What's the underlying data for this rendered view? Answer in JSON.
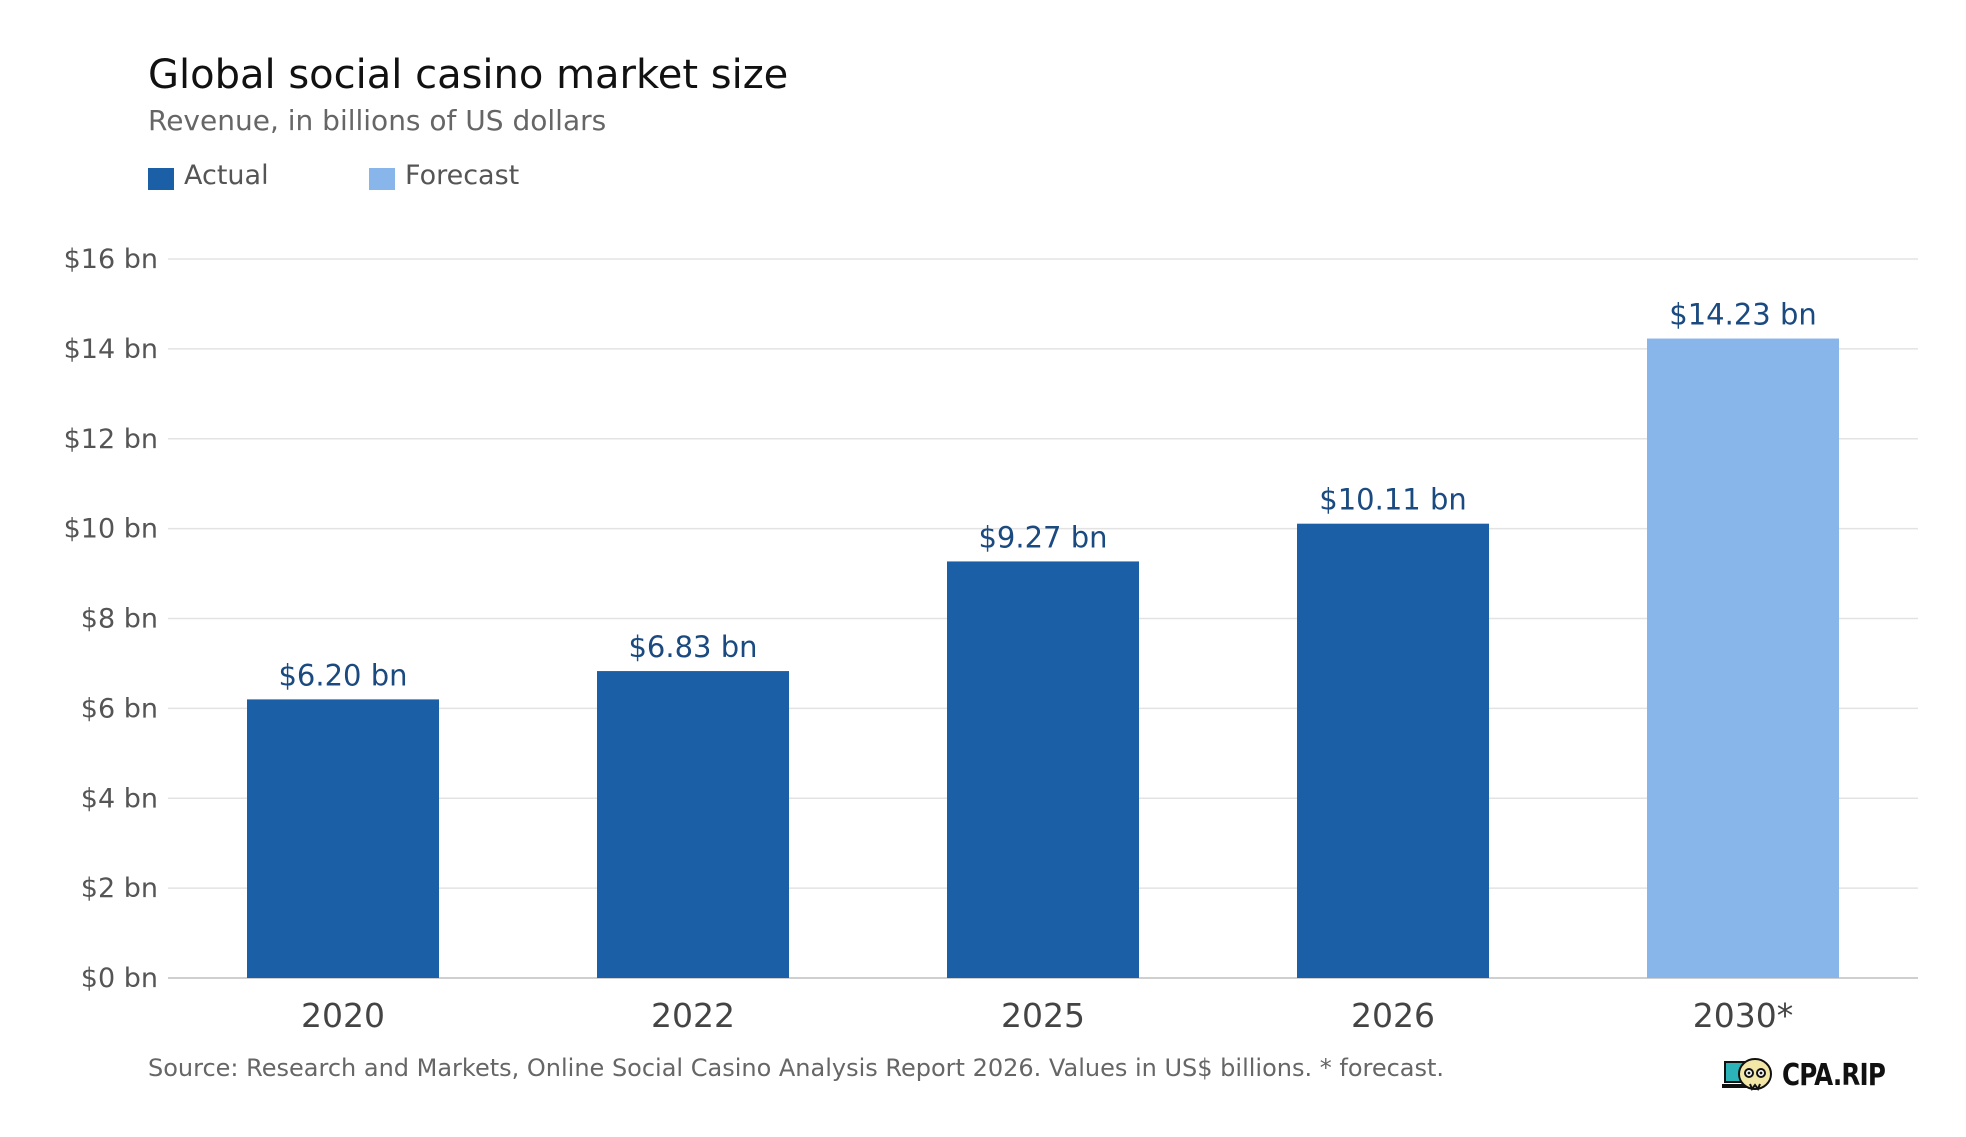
{
  "header": {
    "title": "Global social casino market size",
    "subtitle": "Revenue, in billions of US dollars"
  },
  "legend": {
    "actual_label": "Actual",
    "forecast_label": "Forecast"
  },
  "colors": {
    "actual": "#1b5fa6",
    "forecast": "#88b6ea",
    "label_text": "#1a4a80",
    "grid": "#e3e3e3",
    "axis": "#cfcfcf"
  },
  "footer": {
    "source": "Source: Research and Markets, Online Social Casino Analysis Report 2026. Values in US$ billions. * forecast.",
    "brand": "CPA.RIP"
  },
  "chart_data": {
    "type": "bar",
    "title": "Global social casino market size",
    "subtitle": "Revenue, in billions of US dollars",
    "categories": [
      "2020",
      "2022",
      "2025",
      "2026",
      "2030*"
    ],
    "values": [
      6.2,
      6.83,
      9.27,
      10.11,
      14.23
    ],
    "value_labels": [
      "$6.20 bn",
      "$6.83 bn",
      "$9.27 bn",
      "$10.11 bn",
      "$14.23 bn"
    ],
    "kinds": [
      "actual",
      "actual",
      "actual",
      "actual",
      "forecast"
    ],
    "ylim": [
      0,
      16
    ],
    "yticks": [
      0,
      2,
      4,
      6,
      8,
      10,
      12,
      14,
      16
    ],
    "ytick_labels": [
      "$0 bn",
      "$2 bn",
      "$4 bn",
      "$6 bn",
      "$8 bn",
      "$10 bn",
      "$12 bn",
      "$14 bn",
      "$16 bn"
    ],
    "grid": true,
    "legend_position": "top-left"
  }
}
